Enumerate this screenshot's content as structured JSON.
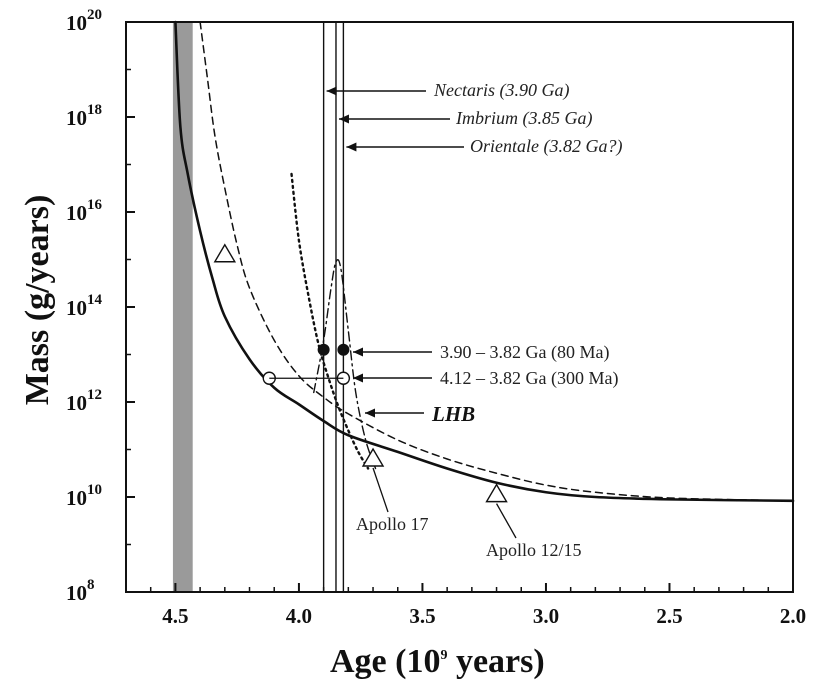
{
  "chart_data": {
    "type": "line",
    "title": "",
    "xlabel": "Age (10",
    "xlabel_sup": "9",
    "xlabel_tail": " years)",
    "ylabel": "Mass (g/years)",
    "xlim": [
      4.7,
      2.0
    ],
    "ylim_log10": [
      8,
      20
    ],
    "x_ticks": [
      "4.5",
      "4.0",
      "3.5",
      "3.0",
      "2.5",
      "2.0"
    ],
    "x_tick_values": [
      4.5,
      4.0,
      3.5,
      3.0,
      2.5,
      2.0
    ],
    "y_ticks": [
      {
        "base": "10",
        "exp": "8",
        "log10": 8
      },
      {
        "base": "10",
        "exp": "10",
        "log10": 10
      },
      {
        "base": "10",
        "exp": "12",
        "log10": 12
      },
      {
        "base": "10",
        "exp": "14",
        "log10": 14
      },
      {
        "base": "10",
        "exp": "16",
        "log10": 16
      },
      {
        "base": "10",
        "exp": "18",
        "log10": 18
      },
      {
        "base": "10",
        "exp": "20",
        "log10": 20
      }
    ],
    "shaded_band": {
      "x_from": 4.51,
      "x_to": 4.43
    },
    "series": [
      {
        "name": "solid decay curve",
        "style": "solid",
        "x": [
          4.5,
          4.48,
          4.45,
          4.4,
          4.35,
          4.3,
          4.2,
          4.1,
          4.0,
          3.9,
          3.8,
          3.6,
          3.4,
          3.2,
          3.0,
          2.8,
          2.5,
          2.0
        ],
        "log10_y": [
          20.0,
          17.8,
          16.8,
          15.6,
          14.6,
          13.8,
          12.9,
          12.3,
          11.95,
          11.6,
          11.3,
          10.95,
          10.6,
          10.3,
          10.1,
          10.0,
          9.95,
          9.92
        ]
      },
      {
        "name": "dashed decay curve",
        "style": "dashed",
        "x": [
          4.4,
          4.37,
          4.34,
          4.3,
          4.25,
          4.2,
          4.1,
          4.0,
          3.9,
          3.8,
          3.6,
          3.4,
          3.2,
          3.0,
          2.8,
          2.5,
          2.0
        ],
        "log10_y": [
          20.0,
          18.8,
          17.6,
          16.5,
          15.3,
          14.4,
          13.3,
          12.55,
          12.1,
          11.75,
          11.2,
          10.8,
          10.5,
          10.25,
          10.1,
          9.98,
          9.92
        ]
      },
      {
        "name": "dotted curve",
        "style": "dotted",
        "x": [
          4.03,
          4.0,
          3.96,
          3.92,
          3.88,
          3.84,
          3.8,
          3.76,
          3.72
        ],
        "log10_y": [
          16.8,
          15.4,
          14.2,
          13.2,
          12.5,
          11.9,
          11.4,
          10.95,
          10.6
        ]
      },
      {
        "name": "LHB spike (dash-dot)",
        "style": "dashdot",
        "x": [
          3.94,
          3.9,
          3.87,
          3.85,
          3.83,
          3.8,
          3.77,
          3.73,
          3.69
        ],
        "log10_y": [
          12.2,
          13.3,
          14.4,
          14.95,
          14.8,
          13.5,
          12.2,
          11.2,
          10.6
        ]
      }
    ],
    "vertical_lines": [
      {
        "name": "Nectaris",
        "x": 3.9
      },
      {
        "name": "Imbrium",
        "x": 3.85
      },
      {
        "name": "Orientale",
        "x": 3.82
      }
    ],
    "points": [
      {
        "name": "triangle",
        "shape": "triangle",
        "x": 4.3,
        "log10_y": 15.1
      },
      {
        "name": "Apollo 17",
        "shape": "triangle",
        "x": 3.7,
        "log10_y": 10.8
      },
      {
        "name": "Apollo 12/15",
        "shape": "triangle",
        "x": 3.2,
        "log10_y": 10.05
      },
      {
        "name": "filled 3.90",
        "shape": "filled-circle",
        "x": 3.9,
        "log10_y": 13.1
      },
      {
        "name": "filled 3.82",
        "shape": "filled-circle",
        "x": 3.82,
        "log10_y": 13.1
      },
      {
        "name": "open 4.12",
        "shape": "open-circle",
        "x": 4.12,
        "log10_y": 12.5
      },
      {
        "name": "open 3.82",
        "shape": "open-circle",
        "x": 3.82,
        "log10_y": 12.5
      }
    ],
    "annotations": {
      "nectaris": "Nectaris (3.90 Ga)",
      "imbrium": "Imbrium (3.85 Ga)",
      "orientale": "Orientale (3.82 Ga?)",
      "range_80": "3.90 – 3.82 Ga (80 Ma)",
      "range_300": "4.12 – 3.82 Ga (300 Ma)",
      "lhb": "LHB",
      "apollo17": "Apollo 17",
      "apollo1215": "Apollo 12/15"
    }
  }
}
